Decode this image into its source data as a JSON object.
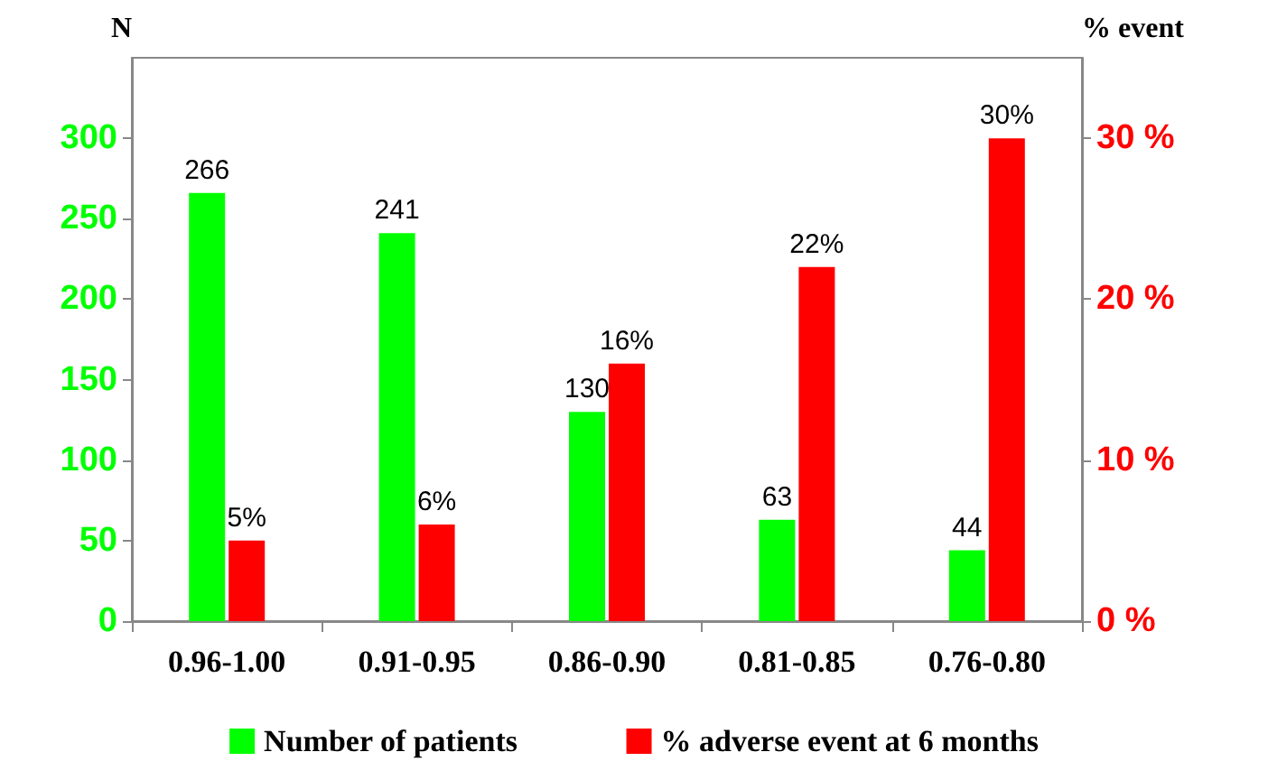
{
  "chart_data": {
    "type": "bar",
    "ylabel": "N",
    "y2label": "% event",
    "categories": [
      "0.96-1.00",
      "0.91-0.95",
      "0.86-0.90",
      "0.81-0.85",
      "0.76-0.80"
    ],
    "series": [
      {
        "name": "Number of patients",
        "color": "#00ff00",
        "values": [
          266,
          241,
          130,
          63,
          44
        ],
        "value_labels": [
          "266",
          "241",
          "130",
          "63",
          "44"
        ]
      },
      {
        "name": "% adverse event at 6 months",
        "color": "#ff0000",
        "axis": "y2",
        "values": [
          5,
          6,
          16,
          22,
          30
        ],
        "value_labels": [
          "5%",
          "6%",
          "16%",
          "22%",
          "30%"
        ]
      }
    ],
    "ylim": [
      0,
      350
    ],
    "yticks": [
      0,
      50,
      100,
      150,
      200,
      250,
      300
    ],
    "y2lim": [
      0,
      35
    ],
    "y2ticks": [
      {
        "value": 0,
        "label": "0 %"
      },
      {
        "value": 10,
        "label": "10 %"
      },
      {
        "value": 20,
        "label": "20 %"
      },
      {
        "value": 30,
        "label": "30 %"
      }
    ],
    "grid": false,
    "legend": "bottom"
  }
}
